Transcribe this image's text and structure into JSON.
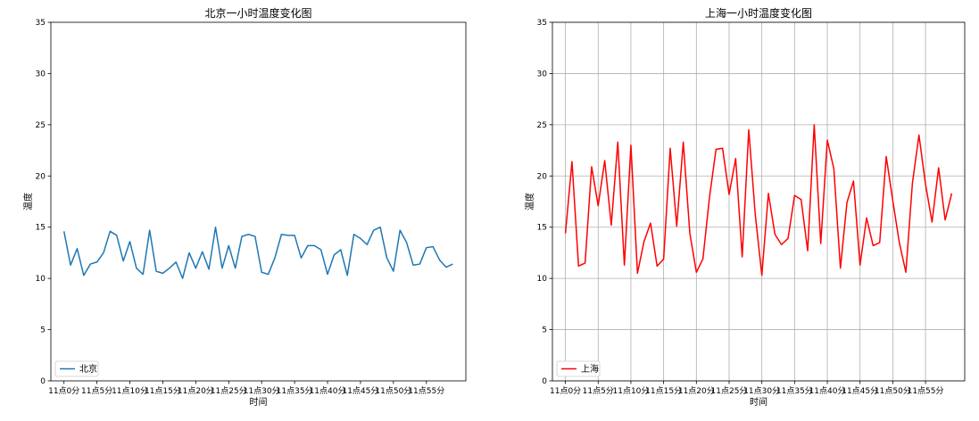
{
  "chart_data": [
    {
      "type": "line",
      "title": "北京一小时温度变化图",
      "xlabel": "时间",
      "ylabel": "温度",
      "ylim": [
        0,
        35
      ],
      "yticks": [
        0,
        5,
        10,
        15,
        20,
        25,
        30,
        35
      ],
      "xtick_labels": [
        "11点0分",
        "11点5分",
        "11点10分",
        "11点15分",
        "11点20分",
        "11点25分",
        "11点30分",
        "11点35分",
        "11点40分",
        "11点45分",
        "11点50分",
        "11点55分"
      ],
      "x_count": 60,
      "grid": false,
      "legend_position": "lower-left",
      "series": [
        {
          "name": "北京",
          "color": "#1f77b4",
          "values": [
            14.6,
            11.3,
            12.9,
            10.3,
            11.4,
            11.6,
            12.5,
            14.6,
            14.2,
            11.7,
            13.6,
            11.0,
            10.4,
            14.7,
            10.7,
            10.5,
            11.0,
            11.6,
            10.0,
            12.5,
            11.0,
            12.6,
            10.9,
            15.0,
            11.0,
            13.2,
            11.0,
            14.1,
            14.3,
            14.1,
            10.6,
            10.4,
            12.0,
            14.3,
            14.2,
            14.2,
            12.0,
            13.2,
            13.2,
            12.8,
            10.4,
            12.3,
            12.8,
            10.3,
            14.3,
            13.9,
            13.3,
            14.7,
            15.0,
            12.0,
            10.7,
            14.7,
            13.5,
            11.3,
            11.4,
            13.0,
            13.1,
            11.8,
            11.1,
            11.4
          ]
        }
      ]
    },
    {
      "type": "line",
      "title": "上海一小时温度变化图",
      "xlabel": "时间",
      "ylabel": "温度",
      "ylim": [
        0,
        35
      ],
      "yticks": [
        0,
        5,
        10,
        15,
        20,
        25,
        30,
        35
      ],
      "xtick_labels": [
        "11点0分",
        "11点5分",
        "11点10分",
        "11点15分",
        "11点20分",
        "11点25分",
        "11点30分",
        "11点35分",
        "11点40分",
        "11点45分",
        "11点50分",
        "11点55分"
      ],
      "x_count": 60,
      "grid": true,
      "legend_position": "lower-left",
      "series": [
        {
          "name": "上海",
          "color": "#ff0000",
          "values": [
            14.4,
            21.4,
            11.2,
            11.5,
            20.9,
            17.1,
            21.5,
            15.2,
            23.3,
            11.3,
            23.0,
            10.5,
            13.6,
            15.4,
            11.2,
            11.9,
            22.7,
            15.1,
            23.3,
            14.4,
            10.6,
            11.9,
            17.9,
            22.6,
            22.7,
            18.2,
            21.7,
            12.1,
            24.5,
            16.2,
            10.3,
            18.3,
            14.3,
            13.3,
            13.9,
            18.1,
            17.7,
            12.7,
            25.0,
            13.4,
            23.5,
            20.7,
            11.0,
            17.4,
            19.5,
            11.3,
            15.9,
            13.2,
            13.5,
            21.9,
            17.6,
            13.5,
            10.6,
            19.3,
            24.0,
            19.2,
            15.5,
            20.8,
            15.7,
            18.3
          ]
        }
      ]
    }
  ]
}
